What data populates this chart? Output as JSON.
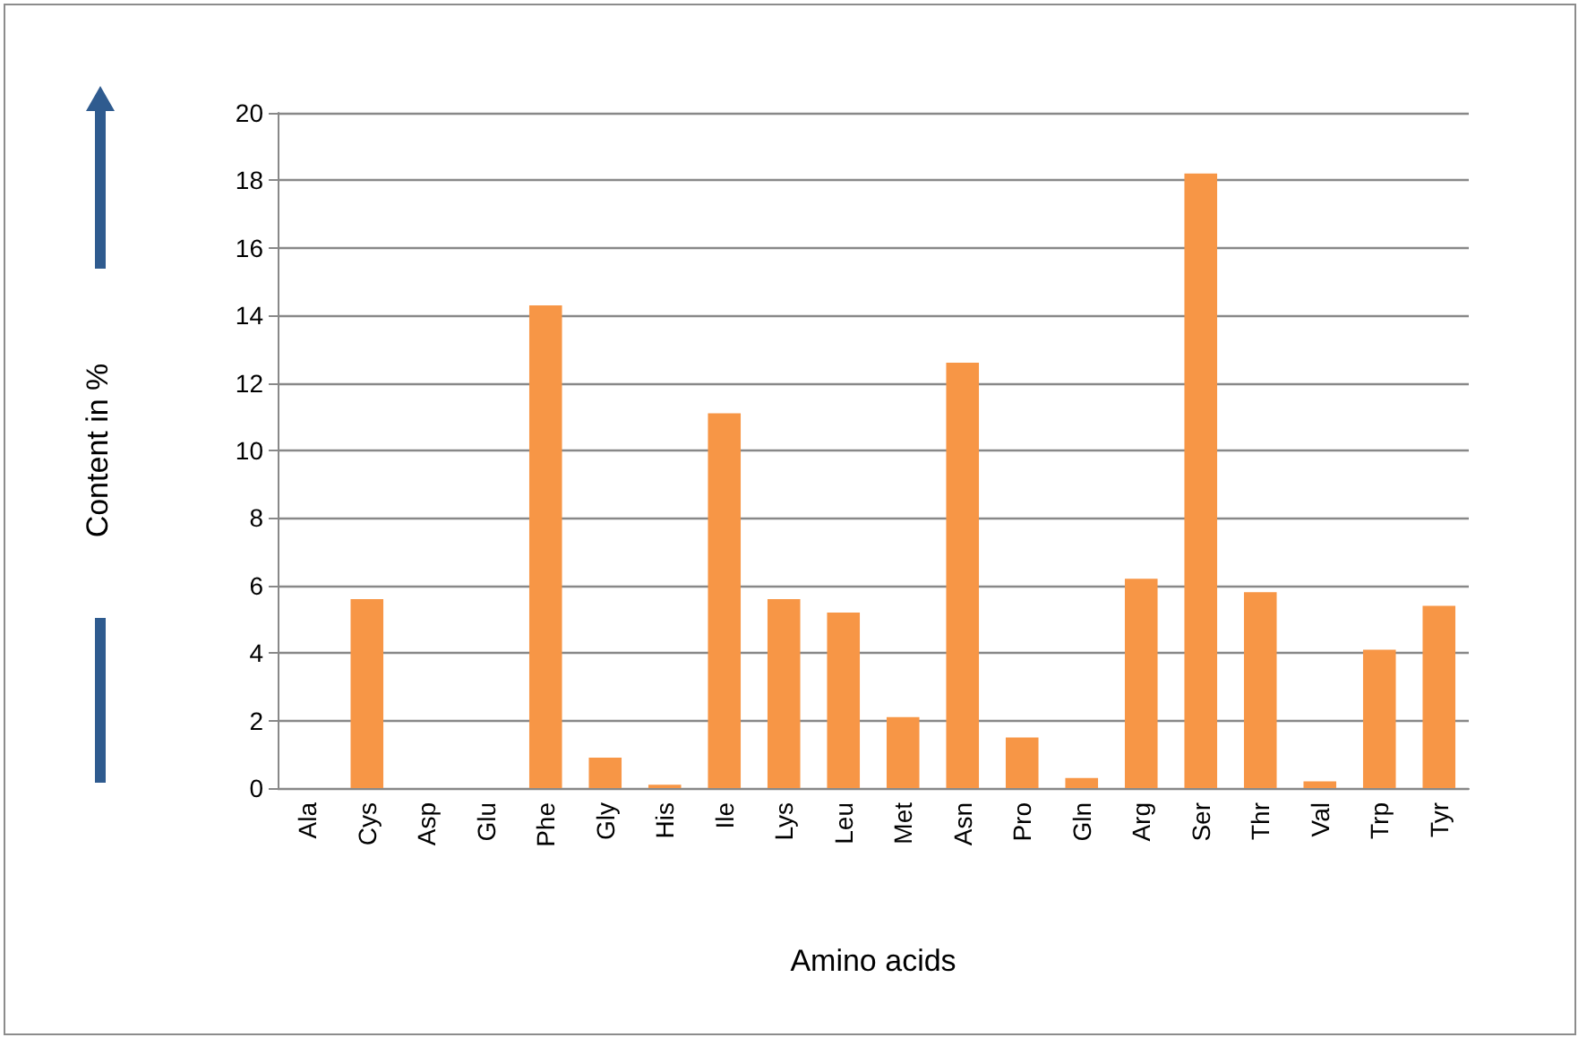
{
  "chart_data": {
    "type": "bar",
    "xlabel": "Amino acids",
    "ylabel": "Content in %",
    "categories": [
      "Ala",
      "Cys",
      "Asp",
      "Glu",
      "Phe",
      "Gly",
      "His",
      "Ile",
      "Lys",
      "Leu",
      "Met",
      "Asn",
      "Pro",
      "Gln",
      "Arg",
      "Ser",
      "Thr",
      "Val",
      "Trp",
      "Tyr"
    ],
    "values": [
      0,
      5.6,
      0,
      0,
      14.3,
      0.9,
      0.1,
      11.1,
      5.6,
      5.2,
      2.1,
      12.6,
      1.5,
      0.3,
      6.2,
      18.2,
      5.8,
      0.2,
      4.1,
      5.4
    ],
    "color": "#f79646",
    "ylim": [
      0,
      20
    ],
    "yticks": [
      0,
      2,
      4,
      6,
      8,
      10,
      12,
      14,
      16,
      18,
      20
    ],
    "grid": "y"
  }
}
